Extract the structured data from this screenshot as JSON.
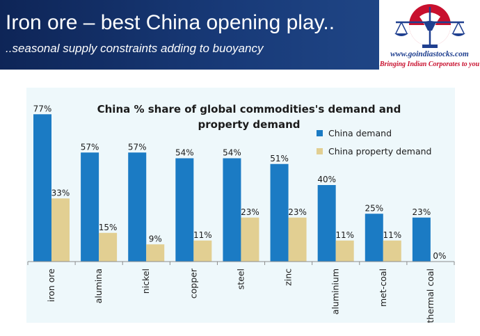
{
  "header": {
    "title": "Iron ore – best China opening play..",
    "subtitle": "..seasonal supply constraints adding to buoyancy"
  },
  "logo": {
    "url": "www.goindiastocks.com",
    "tagline": "Bringing Indian Corporates to you"
  },
  "colors": {
    "banner": "#183a78",
    "china_demand": "#1b7bc4",
    "china_property_demand": "#e2cf92",
    "chart_background": "#eef8fb",
    "logo_red": "#c8102e",
    "logo_blue": "#1f3f8f"
  },
  "chart_data": {
    "type": "bar",
    "title": "China % share of global commodities's demand and property demand",
    "categories": [
      "iron ore",
      "alumina",
      "nickel",
      "copper",
      "steel",
      "zinc",
      "aluminium",
      "met-coal",
      "thermal coal"
    ],
    "series": [
      {
        "name": "China demand",
        "values": [
          77,
          57,
          57,
          54,
          54,
          51,
          40,
          25,
          23
        ],
        "labels": [
          "77%",
          "57%",
          "57%",
          "54%",
          "54%",
          "51%",
          "40%",
          "25%",
          "23%"
        ]
      },
      {
        "name": "China property demand",
        "values": [
          33,
          15,
          9,
          11,
          23,
          23,
          11,
          11,
          0
        ],
        "labels": [
          "33%",
          "15%",
          "9%",
          "11%",
          "23%",
          "23%",
          "11%",
          "11%",
          "0%"
        ]
      }
    ],
    "ylim": [
      0,
      80
    ],
    "legend": "top-right",
    "grid": false,
    "unit": "%"
  }
}
